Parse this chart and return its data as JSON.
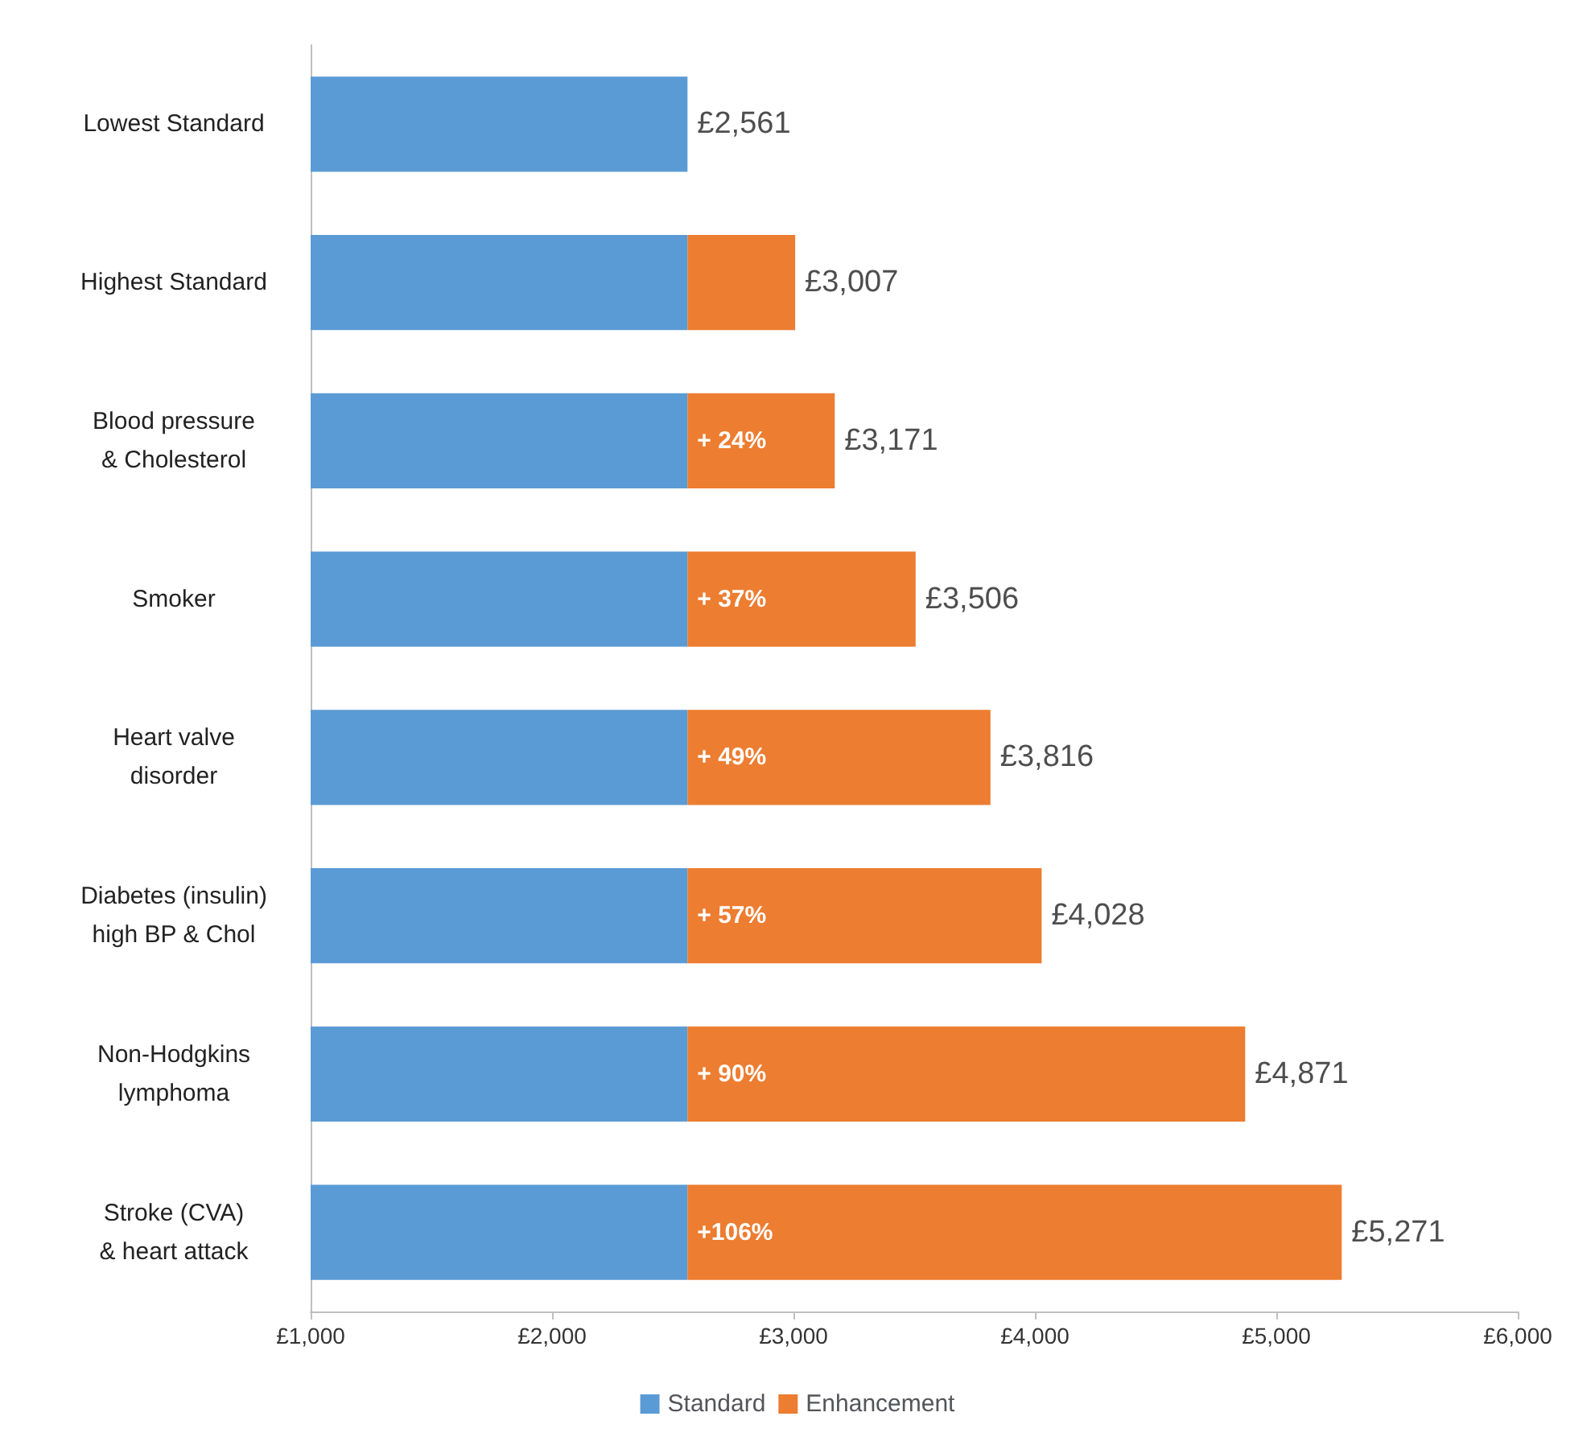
{
  "chart_data": {
    "type": "bar",
    "orientation": "horizontal",
    "stacked": true,
    "categories": [
      "Lowest Standard",
      "Highest Standard",
      "Blood pressure\n& Cholesterol",
      "Smoker",
      "Heart valve\ndisorder",
      "Diabetes (insulin)\nhigh BP & Chol",
      "Non-Hodgkins\nlymphoma",
      "Stroke (CVA)\n& heart attack"
    ],
    "series": [
      {
        "name": "Standard",
        "color": "#5b9bd5",
        "values": [
          2561,
          2561,
          2561,
          2561,
          2561,
          2561,
          2561,
          2561
        ]
      },
      {
        "name": "Enhancement",
        "color": "#ed7d31",
        "base": [
          null,
          2561,
          2561,
          2561,
          2561,
          2561,
          2561,
          2561
        ],
        "values": [
          null,
          446,
          610,
          945,
          1255,
          1467,
          2310,
          2710
        ]
      }
    ],
    "annotations": [
      "+ 24%",
      "+ 37%",
      "+ 49%",
      "+ 57%",
      "+ 90%",
      "+106%"
    ],
    "totals": [
      "£2,561",
      "£3,007",
      "£3,171",
      "£3,506",
      "£3,816",
      "£4,028",
      "£4,871",
      "£5,271"
    ],
    "xlim": [
      1000,
      6000
    ],
    "xticks": [
      {
        "value": 1000,
        "label": "£1,000"
      },
      {
        "value": 2000,
        "label": "£2,000"
      },
      {
        "value": 3000,
        "label": "£3,000"
      },
      {
        "value": 4000,
        "label": "£4,000"
      },
      {
        "value": 5000,
        "label": "£5,000"
      },
      {
        "value": 6000,
        "label": "£6,000"
      }
    ],
    "grid": false,
    "legend": "bottom"
  }
}
